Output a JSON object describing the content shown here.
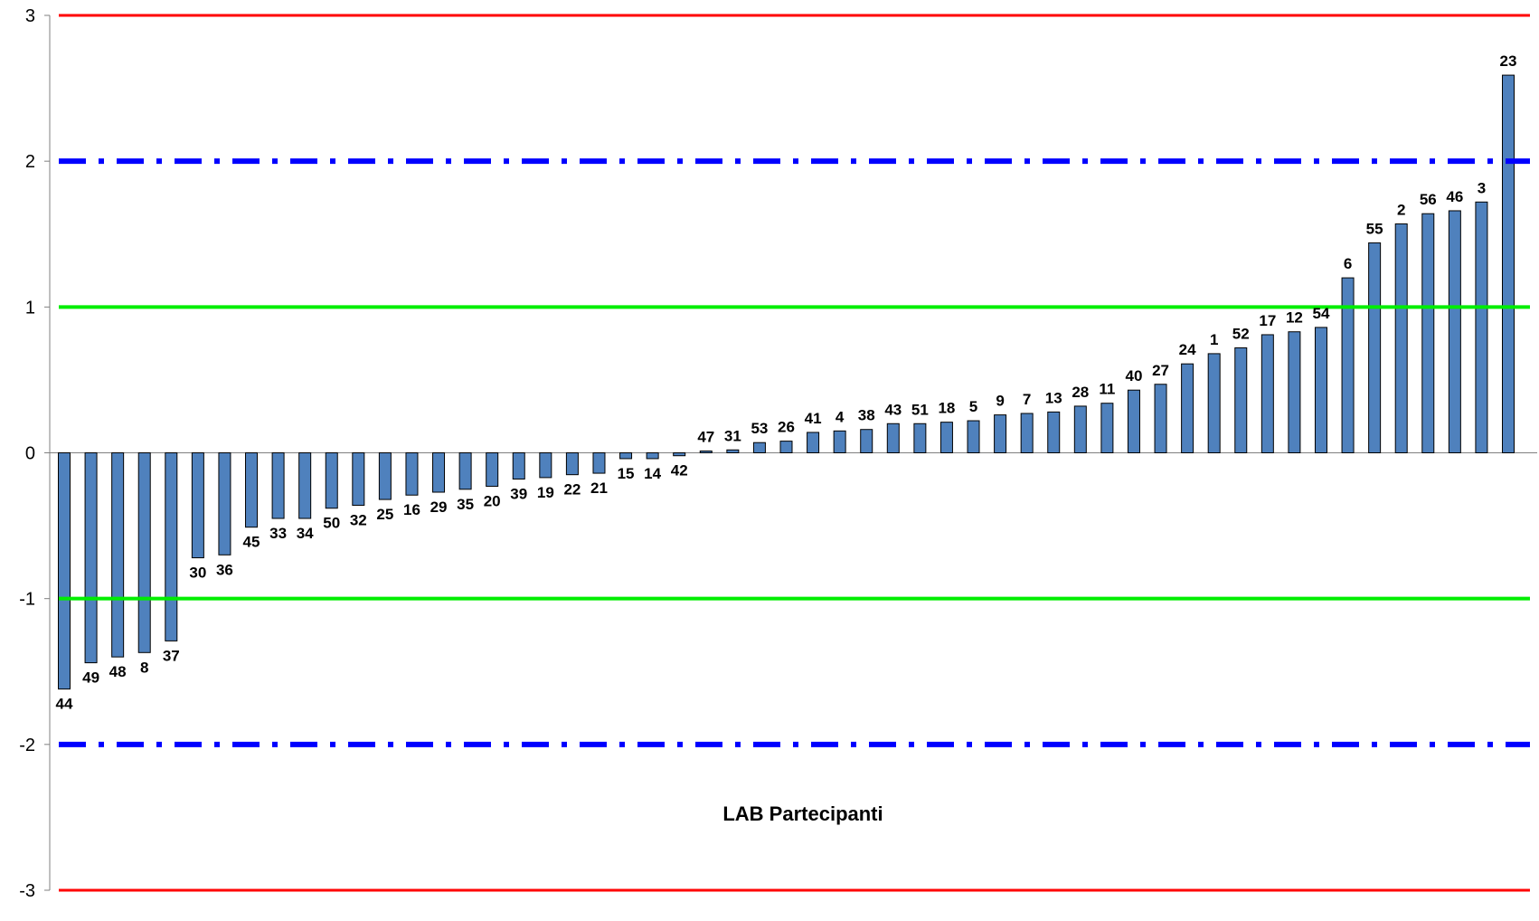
{
  "chart_data": {
    "type": "bar",
    "xlabel": "LAB Partecipanti",
    "ylabel": "",
    "ylim": [
      -3,
      3
    ],
    "yticks": [
      3,
      2,
      1,
      0,
      -1,
      -2,
      -3
    ],
    "ytick_labels": [
      "3",
      "2",
      "1",
      "0",
      "-1",
      "-2",
      "-3"
    ],
    "grid": false,
    "bar_color": "#4f81bd",
    "categories": [
      "44",
      "49",
      "48",
      "8",
      "37",
      "30",
      "36",
      "45",
      "33",
      "34",
      "50",
      "32",
      "25",
      "16",
      "29",
      "35",
      "20",
      "39",
      "19",
      "22",
      "21",
      "15",
      "14",
      "42",
      "47",
      "31",
      "53",
      "26",
      "41",
      "4",
      "38",
      "43",
      "51",
      "18",
      "5",
      "9",
      "7",
      "13",
      "28",
      "11",
      "40",
      "27",
      "24",
      "1",
      "52",
      "17",
      "12",
      "54",
      "6",
      "55",
      "2",
      "56",
      "46",
      "3",
      "23"
    ],
    "values": [
      -1.62,
      -1.44,
      -1.4,
      -1.37,
      -1.29,
      -0.72,
      -0.7,
      -0.51,
      -0.45,
      -0.45,
      -0.38,
      -0.36,
      -0.32,
      -0.29,
      -0.27,
      -0.25,
      -0.23,
      -0.18,
      -0.17,
      -0.15,
      -0.14,
      -0.04,
      -0.04,
      -0.02,
      0.0,
      0.02,
      0.07,
      0.08,
      0.14,
      0.15,
      0.16,
      0.2,
      0.2,
      0.21,
      0.22,
      0.26,
      0.27,
      0.28,
      0.32,
      0.34,
      0.43,
      0.47,
      0.61,
      0.68,
      0.72,
      0.81,
      0.83,
      0.86,
      1.2,
      1.44,
      1.57,
      1.64,
      1.66,
      1.72,
      2.59
    ],
    "reference_lines": [
      {
        "value": 3,
        "color": "#ff0000",
        "style": "solid"
      },
      {
        "value": -3,
        "color": "#ff0000",
        "style": "solid"
      },
      {
        "value": 2,
        "color": "#0000ff",
        "style": "dashdot"
      },
      {
        "value": -2,
        "color": "#0000ff",
        "style": "dashdot"
      },
      {
        "value": 1,
        "color": "#00ee00",
        "style": "solid"
      },
      {
        "value": -1,
        "color": "#00ee00",
        "style": "solid"
      }
    ]
  }
}
